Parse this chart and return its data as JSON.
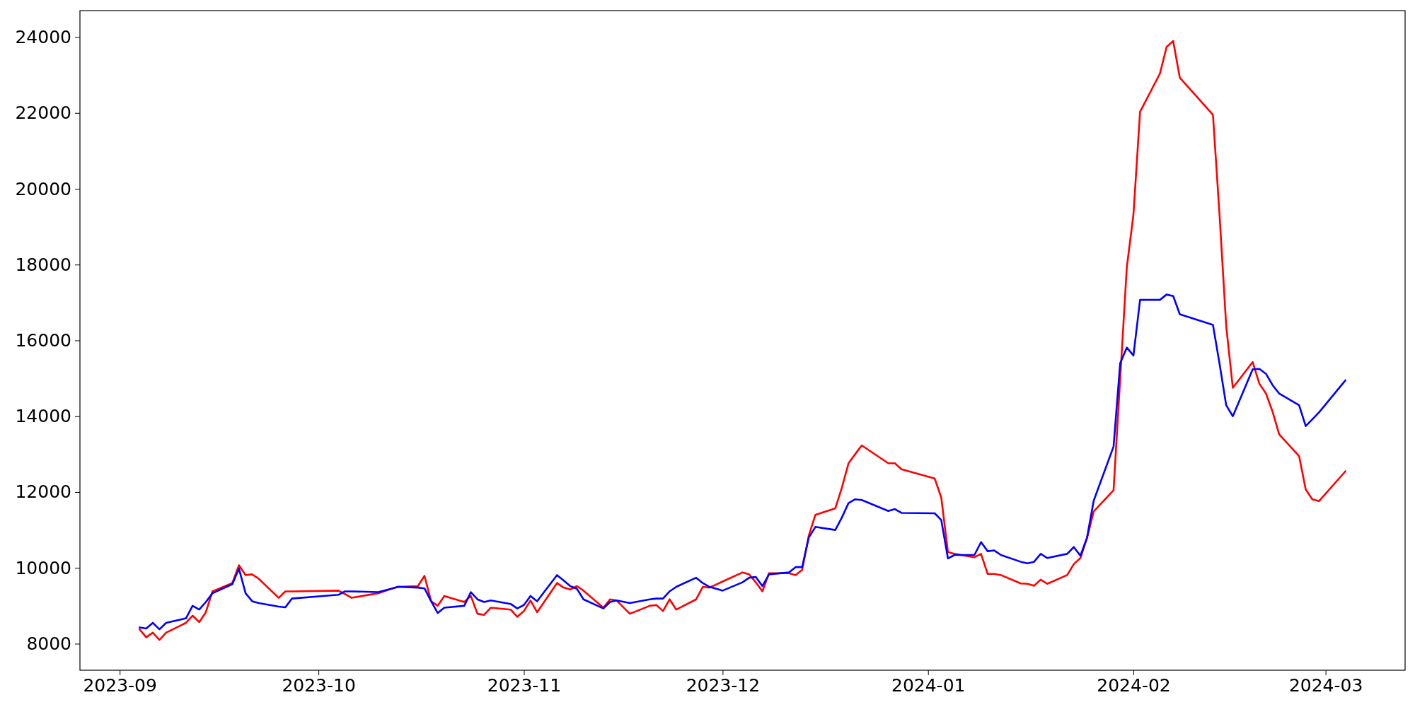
{
  "chart_data": {
    "type": "line",
    "x": [
      "2023-09-04",
      "2023-09-05",
      "2023-09-06",
      "2023-09-07",
      "2023-09-08",
      "2023-09-11",
      "2023-09-12",
      "2023-09-13",
      "2023-09-14",
      "2023-09-15",
      "2023-09-18",
      "2023-09-19",
      "2023-09-20",
      "2023-09-21",
      "2023-09-22",
      "2023-09-25",
      "2023-09-26",
      "2023-09-27",
      "2023-10-04",
      "2023-10-05",
      "2023-10-06",
      "2023-10-10",
      "2023-10-12",
      "2023-10-13",
      "2023-10-16",
      "2023-10-17",
      "2023-10-18",
      "2023-10-19",
      "2023-10-20",
      "2023-10-23",
      "2023-10-24",
      "2023-10-25",
      "2023-10-26",
      "2023-10-27",
      "2023-10-30",
      "2023-10-31",
      "2023-11-01",
      "2023-11-02",
      "2023-11-03",
      "2023-11-06",
      "2023-11-07",
      "2023-11-08",
      "2023-11-09",
      "2023-11-10",
      "2023-11-13",
      "2023-11-14",
      "2023-11-15",
      "2023-11-17",
      "2023-11-20",
      "2023-11-21",
      "2023-11-22",
      "2023-11-23",
      "2023-11-24",
      "2023-11-27",
      "2023-11-28",
      "2023-11-29",
      "2023-12-01",
      "2023-12-04",
      "2023-12-05",
      "2023-12-06",
      "2023-12-07",
      "2023-12-08",
      "2023-12-11",
      "2023-12-12",
      "2023-12-13",
      "2023-12-14",
      "2023-12-15",
      "2023-12-18",
      "2023-12-19",
      "2023-12-20",
      "2023-12-21",
      "2023-12-22",
      "2023-12-26",
      "2023-12-27",
      "2023-12-28",
      "2024-01-02",
      "2024-01-03",
      "2024-01-04",
      "2024-01-05",
      "2024-01-08",
      "2024-01-09",
      "2024-01-10",
      "2024-01-11",
      "2024-01-12",
      "2024-01-15",
      "2024-01-16",
      "2024-01-17",
      "2024-01-18",
      "2024-01-19",
      "2024-01-22",
      "2024-01-23",
      "2024-01-24",
      "2024-01-25",
      "2024-01-26",
      "2024-01-29",
      "2024-01-30",
      "2024-01-31",
      "2024-02-01",
      "2024-02-02",
      "2024-02-05",
      "2024-02-06",
      "2024-02-07",
      "2024-02-08",
      "2024-02-13",
      "2024-02-14",
      "2024-02-15",
      "2024-02-16",
      "2024-02-19",
      "2024-02-20",
      "2024-02-21",
      "2024-02-22",
      "2024-02-23",
      "2024-02-26",
      "2024-02-27",
      "2024-02-28",
      "2024-02-29",
      "2024-03-04"
    ],
    "series": [
      {
        "color": "#ff0000",
        "values": [
          8380,
          8170,
          8290,
          8100,
          8290,
          8550,
          8740,
          8570,
          8830,
          9380,
          9600,
          10070,
          9810,
          9830,
          9710,
          9210,
          9380,
          9380,
          9400,
          9310,
          9210,
          9330,
          9450,
          9500,
          9520,
          9790,
          9120,
          9000,
          9260,
          9100,
          9260,
          8790,
          8760,
          8950,
          8900,
          8710,
          8860,
          9140,
          8830,
          9600,
          9480,
          9430,
          9520,
          9400,
          8950,
          9170,
          9140,
          8790,
          9000,
          9020,
          8860,
          9170,
          8900,
          9170,
          9500,
          9480,
          9640,
          9880,
          9830,
          9620,
          9380,
          9860,
          9860,
          9810,
          9950,
          10850,
          11400,
          11570,
          12120,
          12760,
          13000,
          13230,
          12760,
          12760,
          12600,
          12360,
          11850,
          10420,
          10370,
          10280,
          10370,
          9840,
          9840,
          9810,
          9590,
          9580,
          9530,
          9690,
          9580,
          9810,
          10100,
          10260,
          10790,
          11490,
          12050,
          15000,
          17930,
          19320,
          22030,
          23040,
          23740,
          23900,
          22930,
          21950,
          19300,
          16380,
          14750,
          15430,
          14860,
          14600,
          14120,
          13520,
          12950,
          12070,
          11810,
          11760,
          12550
        ]
      },
      {
        "color": "#0000ff",
        "values": [
          8430,
          8400,
          8550,
          8380,
          8550,
          8670,
          9000,
          8900,
          9100,
          9330,
          9570,
          9980,
          9330,
          9120,
          9070,
          8980,
          8960,
          9190,
          9290,
          9380,
          9380,
          9360,
          9450,
          9500,
          9480,
          9460,
          9120,
          8810,
          8950,
          9000,
          9360,
          9170,
          9100,
          9140,
          9050,
          8930,
          9020,
          9260,
          9120,
          9810,
          9670,
          9520,
          9450,
          9170,
          8930,
          9100,
          9140,
          9070,
          9170,
          9190,
          9190,
          9380,
          9500,
          9740,
          9600,
          9500,
          9400,
          9620,
          9740,
          9760,
          9520,
          9830,
          9880,
          10020,
          10020,
          10800,
          11080,
          11000,
          11330,
          11710,
          11810,
          11790,
          11500,
          11550,
          11450,
          11440,
          11260,
          10250,
          10340,
          10340,
          10680,
          10440,
          10460,
          10340,
          10160,
          10120,
          10160,
          10370,
          10260,
          10370,
          10550,
          10320,
          10800,
          11770,
          13200,
          15400,
          15810,
          15600,
          17070,
          17070,
          17210,
          17170,
          16690,
          16410,
          15380,
          14290,
          14000,
          15240,
          15250,
          15120,
          14820,
          14600,
          14290,
          13740,
          13920,
          14100,
          14950
        ]
      }
    ],
    "xlim": [
      "2023-08-26",
      "2024-03-13"
    ],
    "ylim": [
      7300,
      24700
    ],
    "xticks": [
      "2023-09",
      "2023-10",
      "2023-11",
      "2023-12",
      "2024-01",
      "2024-02",
      "2024-03"
    ],
    "yticks": [
      8000,
      10000,
      12000,
      14000,
      16000,
      18000,
      20000,
      22000,
      24000
    ],
    "grid": false,
    "marker": "none",
    "line_style": "solid"
  }
}
